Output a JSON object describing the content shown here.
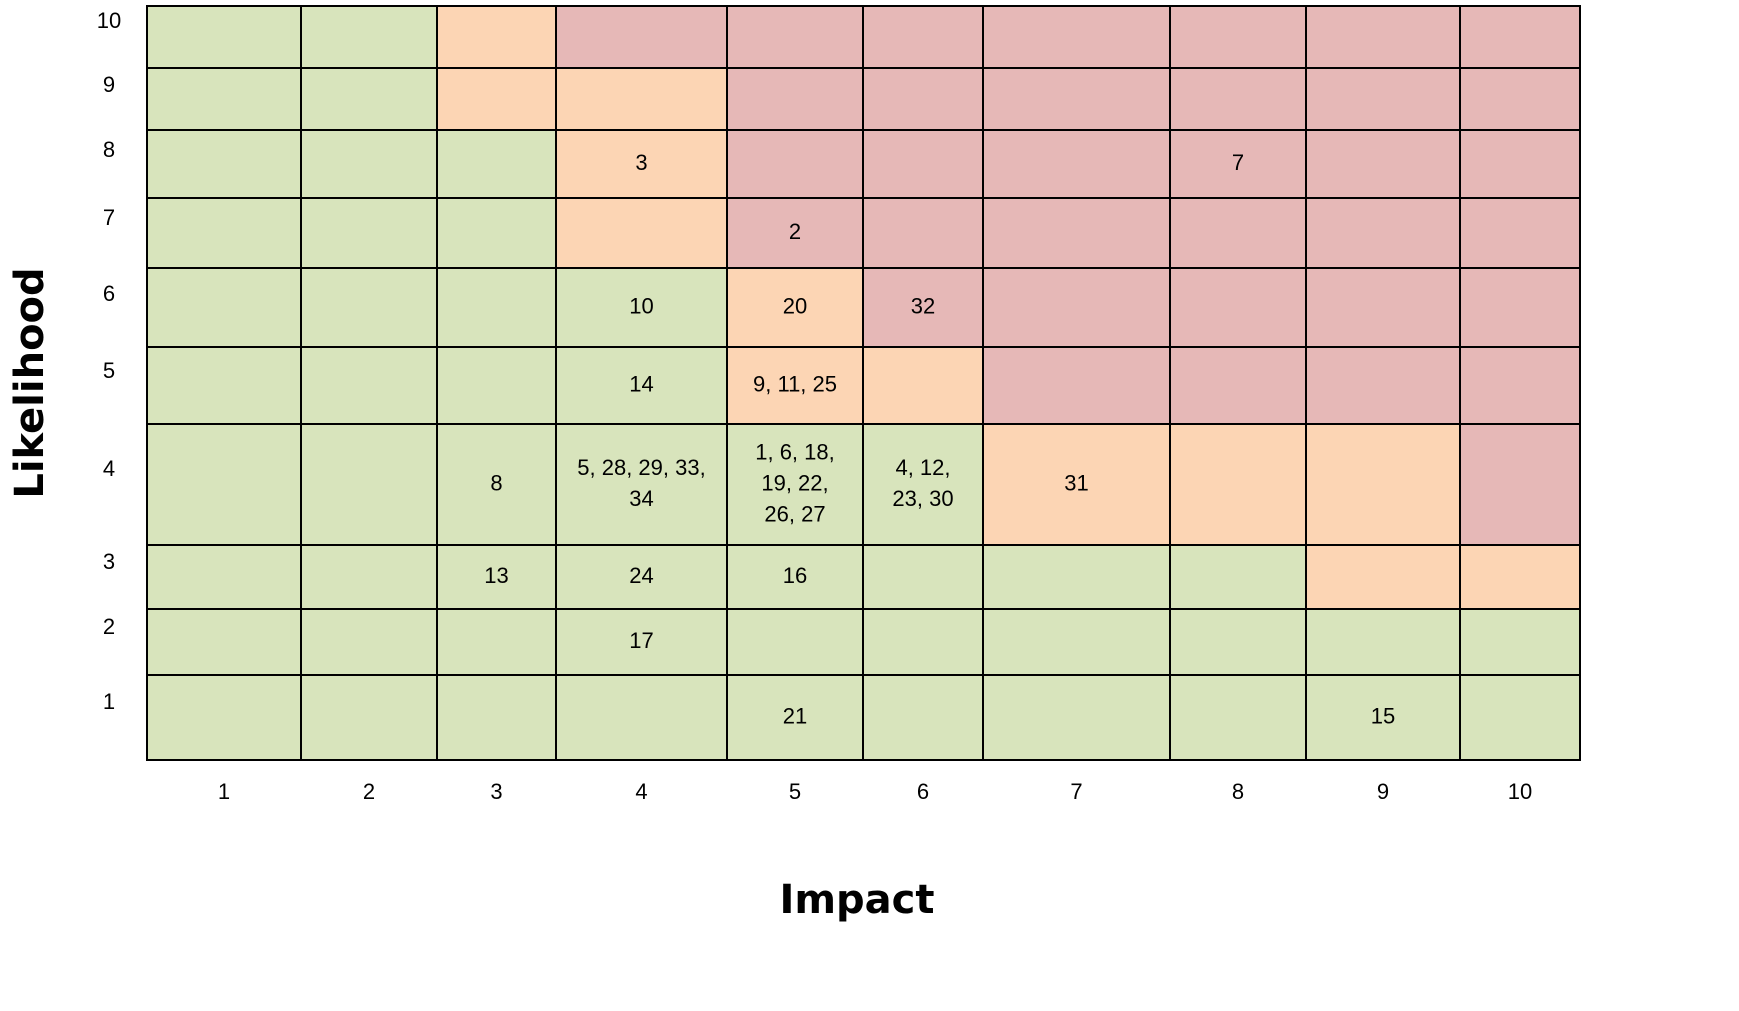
{
  "chart_data": {
    "type": "heatmap",
    "title": "",
    "xlabel": "Impact",
    "ylabel": "Likelihood",
    "x": [
      "1",
      "2",
      "3",
      "4",
      "5",
      "6",
      "7",
      "8",
      "9",
      "10"
    ],
    "y": [
      "1",
      "2",
      "3",
      "4",
      "5",
      "6",
      "7",
      "8",
      "9",
      "10"
    ],
    "colors": {
      "g": "#d8e4bc",
      "o": "#fcd5b4",
      "r": "#e6b8b7",
      "border": "#000000"
    },
    "zones_top_to_bottom": [
      "ggorrrrrrr",
      "ggoorrrrrr",
      "gggorrrrrr",
      "gggorrrrrr",
      "ggggorrrrr",
      "ggggoorrrr",
      "ggggggooor",
      "ggggggggoo",
      "gggggggggg",
      "gggggggggg"
    ],
    "cells": [
      {
        "impact": 4,
        "likelihood": 8,
        "text": "3"
      },
      {
        "impact": 8,
        "likelihood": 8,
        "text": "7"
      },
      {
        "impact": 5,
        "likelihood": 7,
        "text": "2"
      },
      {
        "impact": 4,
        "likelihood": 6,
        "text": "10"
      },
      {
        "impact": 5,
        "likelihood": 6,
        "text": "20"
      },
      {
        "impact": 6,
        "likelihood": 6,
        "text": "32"
      },
      {
        "impact": 4,
        "likelihood": 5,
        "text": "14"
      },
      {
        "impact": 5,
        "likelihood": 5,
        "text": "9, 11, 25"
      },
      {
        "impact": 3,
        "likelihood": 4,
        "text": "8"
      },
      {
        "impact": 4,
        "likelihood": 4,
        "lines": [
          "5, 28, 29, 33,",
          "34"
        ]
      },
      {
        "impact": 5,
        "likelihood": 4,
        "lines": [
          "1, 6, 18,",
          "19, 22,",
          "26, 27"
        ]
      },
      {
        "impact": 6,
        "likelihood": 4,
        "lines": [
          "4, 12,",
          "23, 30"
        ]
      },
      {
        "impact": 7,
        "likelihood": 4,
        "text": "31"
      },
      {
        "impact": 3,
        "likelihood": 3,
        "text": "13"
      },
      {
        "impact": 4,
        "likelihood": 3,
        "text": "24"
      },
      {
        "impact": 5,
        "likelihood": 3,
        "text": "16"
      },
      {
        "impact": 4,
        "likelihood": 2,
        "text": "17"
      },
      {
        "impact": 5,
        "likelihood": 1,
        "text": "21"
      },
      {
        "impact": 9,
        "likelihood": 1,
        "text": "15"
      }
    ]
  }
}
